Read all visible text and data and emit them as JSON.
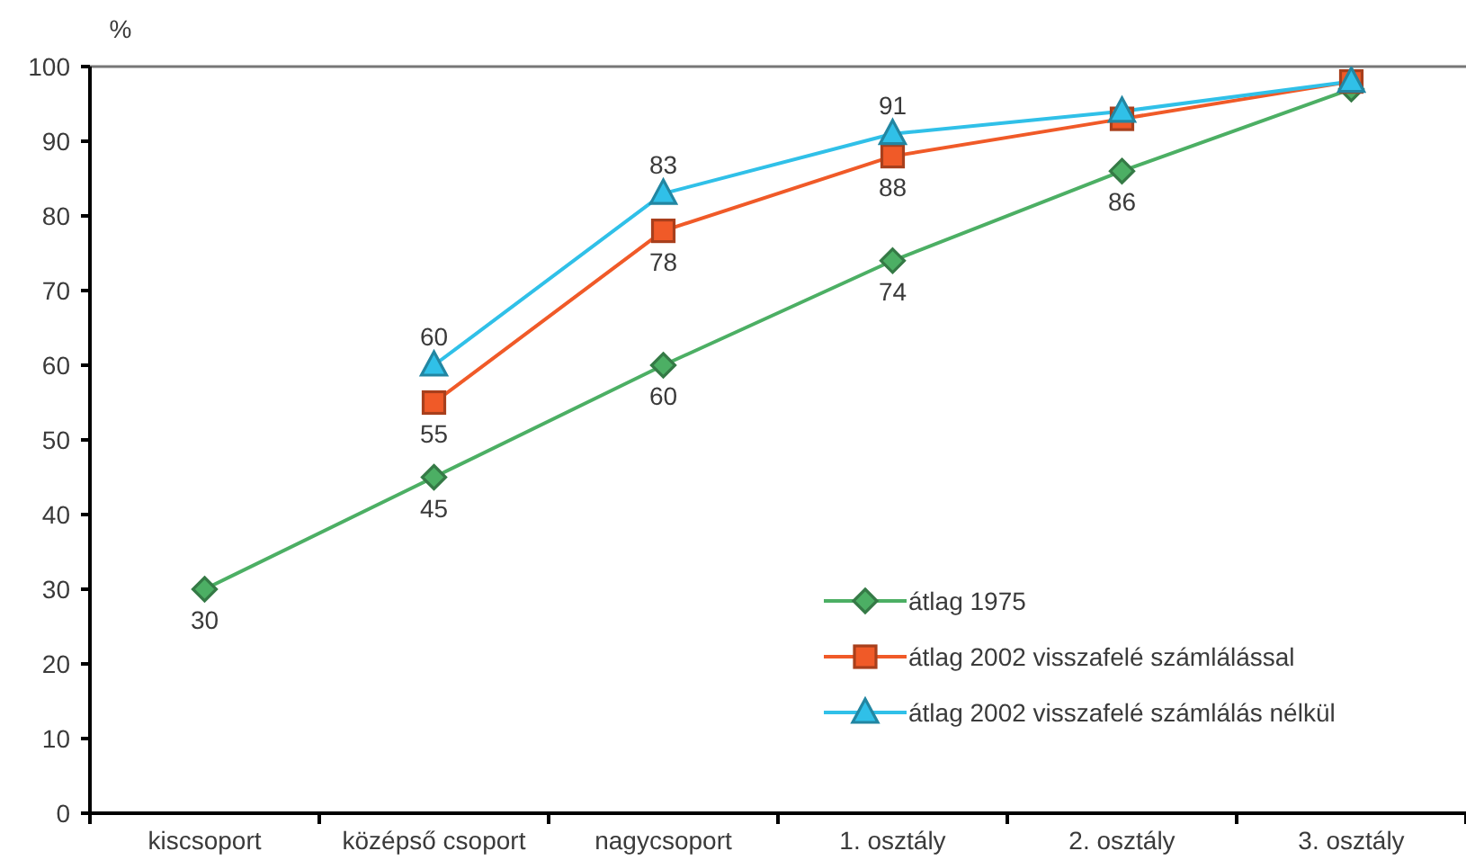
{
  "chart_data": {
    "type": "line",
    "ylabel": "%",
    "categories": [
      "kiscsoport",
      "középső csoport",
      "nagycsoport",
      "1. osztály",
      "2. osztály",
      "3. osztály"
    ],
    "ylim": [
      0,
      100
    ],
    "yticks": [
      0,
      10,
      20,
      30,
      40,
      50,
      60,
      70,
      80,
      90,
      100
    ],
    "legend": "bottom right",
    "series": [
      {
        "name": "átlag 1975",
        "color": "#4caf64",
        "marker": "diamond",
        "values": [
          30,
          45,
          60,
          74,
          86,
          97
        ],
        "value_labels": [
          "30",
          "45",
          "60",
          "74",
          "86",
          null
        ]
      },
      {
        "name": "átlag 2002 visszafelé számlálással",
        "color": "#f05a28",
        "marker": "square",
        "values": [
          null,
          55,
          78,
          88,
          93,
          98
        ],
        "value_labels": [
          null,
          "55",
          "78",
          "88",
          null,
          null
        ]
      },
      {
        "name": "átlag 2002 visszafelé számlálás nélkül",
        "color": "#30c0e8",
        "marker": "triangle",
        "values": [
          null,
          60,
          83,
          91,
          94,
          98
        ],
        "value_labels": [
          null,
          "60",
          "83",
          "91",
          null,
          null
        ]
      }
    ]
  }
}
